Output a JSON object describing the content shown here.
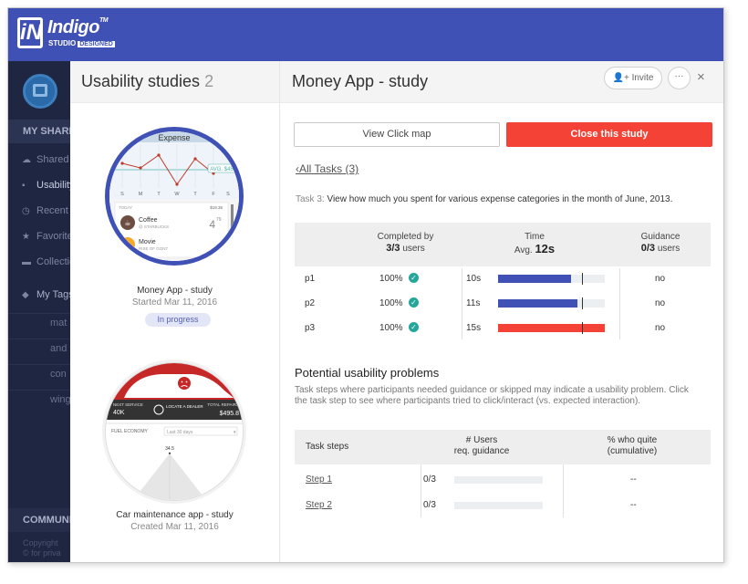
{
  "app": {
    "brand": "Indigo",
    "tm": "TM",
    "studio": "STUDIO",
    "designed": "DESIGNED"
  },
  "sidebar": {
    "section_shared": "MY SHARED",
    "items": [
      {
        "label": "Shared",
        "icon": "cloud-icon"
      },
      {
        "label": "Usability",
        "icon": "usability-icon"
      },
      {
        "label": "Recent",
        "icon": "clock-icon"
      },
      {
        "label": "Favorites",
        "icon": "star-icon"
      },
      {
        "label": "Collections",
        "icon": "folder-icon"
      },
      {
        "label": "My Tags",
        "icon": "tag-icon"
      }
    ],
    "sub_items": [
      "mat",
      "and",
      "con",
      "wing"
    ],
    "section_community": "COMMUNITY",
    "copyright_1": "Copyright",
    "copyright_2": "© for priva"
  },
  "studies": {
    "title": "Usability studies",
    "count": "2",
    "list": [
      {
        "name": "Money App - study",
        "date": "Started Mar 11, 2016",
        "status": "In progress",
        "thumb": {
          "header": "Expense",
          "badge": "AVG. $45",
          "days": [
            "S",
            "M",
            "T",
            "W",
            "T",
            "F",
            "S"
          ],
          "today": "TODAY",
          "total": "$19.35",
          "item1": "Coffee",
          "item1_sub": "@ STARBUCKS",
          "item1_val": "4",
          "item1_val_sup": "79",
          "item2": "Movie",
          "item2_sub": "RISE OF GONT"
        }
      },
      {
        "name": "Car maintenance app - study",
        "date": "Created Mar 11, 2016",
        "thumb": {
          "next_service": "NEXT SERVICE",
          "next_service_val": "40K",
          "locate": "LOCATE A DEALER",
          "total_repairs": "TOTAL REPAIRS",
          "total_repairs_val": "$495.8",
          "fuel": "FUEL ECONOMY",
          "range": "Last 30 days",
          "value": "34.5"
        }
      }
    ]
  },
  "main": {
    "title": "Money App - study",
    "invite": "Invite",
    "more": "···",
    "close": "×",
    "view_click_map": "View Click map",
    "close_study": "Close this study",
    "all_tasks": "All Tasks (3)",
    "task_label": "Task 3:",
    "task_text": "View how much you spent for various expense categories in the month of June, 2013.",
    "task_table": {
      "completed_label": "Completed by",
      "completed_value": "3/3",
      "completed_unit": "users",
      "time_label": "Time",
      "time_avg": "Avg.",
      "time_value": "12s",
      "guidance_label": "Guidance",
      "guidance_value": "0/3",
      "guidance_unit": "users",
      "rows": [
        {
          "p": "p1",
          "pct": "100%",
          "time": "10s",
          "bar_fraction": 0.68,
          "color": "#3f51b5",
          "guidance": "no"
        },
        {
          "p": "p2",
          "pct": "100%",
          "time": "11s",
          "bar_fraction": 0.74,
          "color": "#3f51b5",
          "guidance": "no"
        },
        {
          "p": "p3",
          "pct": "100%",
          "time": "15s",
          "bar_fraction": 1.0,
          "color": "#f44336",
          "guidance": "no"
        }
      ],
      "avg_fraction": 0.79
    },
    "problems_title": "Potential usability problems",
    "problems_desc": "Task steps where participants needed guidance or skipped may indicate a usability problem. Click the task step to see where participants tried to click/interact (vs. expected interaction).",
    "steps_table": {
      "col1": "Task steps",
      "col2a": "# Users",
      "col2b": "req. guidance",
      "col3a": "% who quite",
      "col3b": "(cumulative)",
      "rows": [
        {
          "step": "Step 1",
          "value": "0/3",
          "dash": "--"
        },
        {
          "step": "Step 2",
          "value": "0/3",
          "dash": "--"
        }
      ]
    }
  }
}
